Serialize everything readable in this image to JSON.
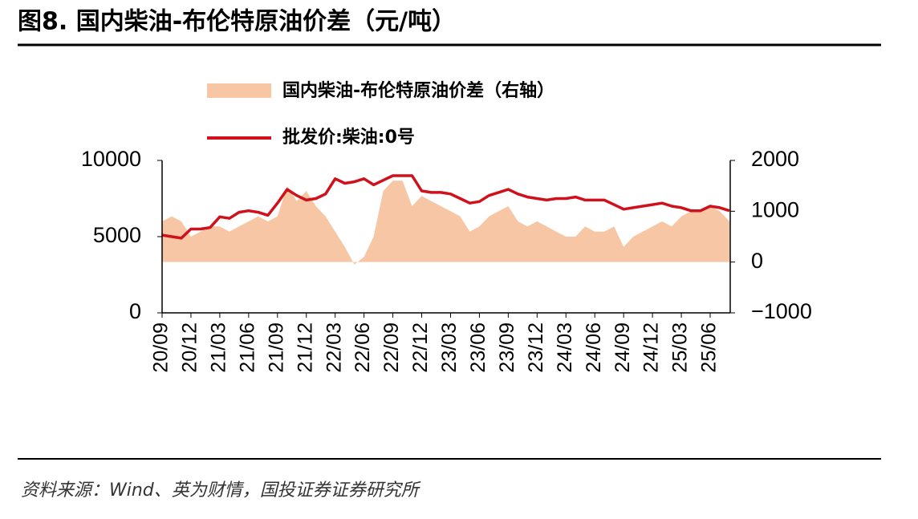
{
  "chart_data": {
    "type": "area-line",
    "title": "图8. 国内柴油-布伦特原油价差（元/吨）",
    "source": "资料来源：Wind、英为财情，国投证券证券研究所",
    "categories": [
      "20/09",
      null,
      null,
      "20/12",
      null,
      null,
      "21/03",
      null,
      null,
      "21/06",
      null,
      null,
      "21/09",
      null,
      null,
      "21/12",
      null,
      null,
      "22/03",
      null,
      null,
      "22/06",
      null,
      null,
      "22/09",
      null,
      null,
      "22/12",
      null,
      null,
      "23/03",
      null,
      null,
      "23/06",
      null,
      null,
      "23/09",
      null,
      null,
      "23/12",
      null,
      null,
      "24/03",
      null,
      null,
      "24/06",
      null,
      null,
      "24/09",
      null,
      null,
      "24/12",
      null,
      null,
      "25/03",
      null,
      null,
      "25/06",
      null,
      null
    ],
    "series": [
      {
        "name": "国内柴油-布伦特原油价差（右轴）",
        "color": "#f7c6a5",
        "axis": "y2",
        "kind": "area",
        "values": [
          800,
          900,
          800,
          500,
          600,
          700,
          700,
          600,
          700,
          800,
          900,
          800,
          900,
          1500,
          1200,
          1400,
          1100,
          900,
          600,
          300,
          -50,
          100,
          500,
          1400,
          1600,
          1600,
          1100,
          1300,
          1200,
          1100,
          1000,
          900,
          600,
          700,
          900,
          1000,
          1100,
          800,
          700,
          800,
          700,
          600,
          500,
          500,
          700,
          600,
          600,
          700,
          300,
          500,
          600,
          700,
          800,
          700,
          900,
          1000,
          1000,
          1100,
          1000,
          800
        ]
      },
      {
        "name": "批发价:柴油:0号",
        "color": "#d0111b",
        "axis": "y",
        "kind": "line",
        "values": [
          5100,
          5000,
          4900,
          5500,
          5500,
          5600,
          6300,
          6200,
          6600,
          6700,
          6600,
          6400,
          7200,
          8100,
          7700,
          7400,
          7500,
          7800,
          8800,
          8500,
          8600,
          8800,
          8400,
          8700,
          9000,
          9000,
          9000,
          8000,
          7900,
          7900,
          7800,
          7500,
          7200,
          7300,
          7700,
          7900,
          8100,
          7800,
          7600,
          7500,
          7400,
          7500,
          7500,
          7600,
          7400,
          7400,
          7400,
          7100,
          6800,
          6900,
          7000,
          7100,
          7200,
          7000,
          6900,
          6700,
          6700,
          7000,
          6900,
          6700
        ]
      }
    ],
    "ylim": [
      0,
      10000
    ],
    "yticks": [
      0,
      5000,
      10000
    ],
    "y2lim": [
      -1000,
      2000
    ],
    "y2ticks": [
      {
        "value": -1000,
        "label": "−1000"
      },
      0,
      1000,
      2000
    ]
  }
}
